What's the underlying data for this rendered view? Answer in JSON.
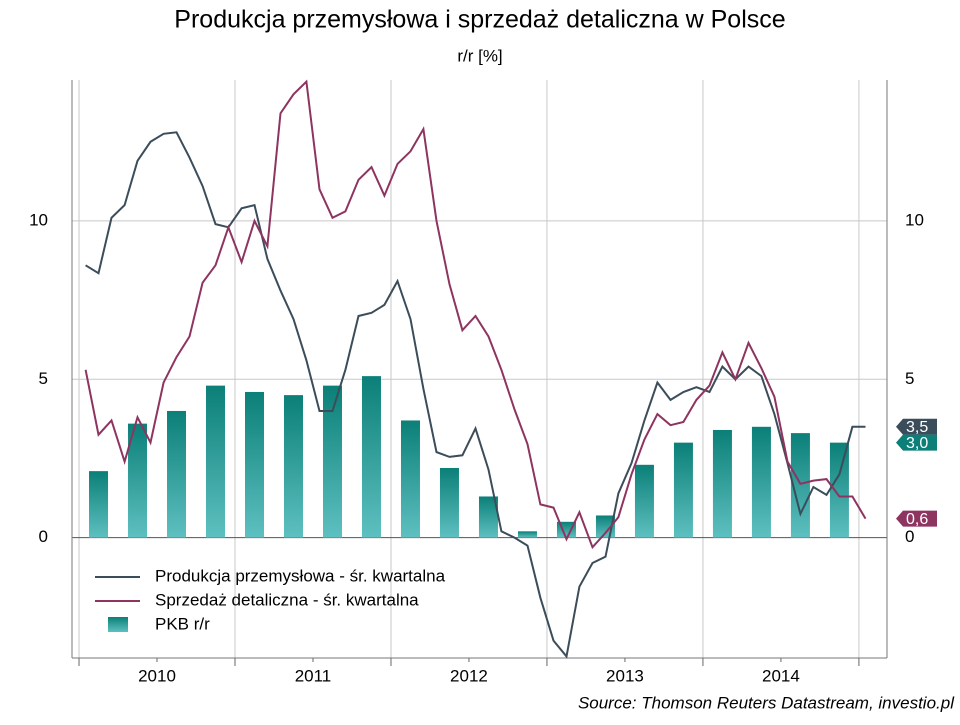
{
  "chart_data": {
    "type": "line",
    "title": "Produkcja przemysłowa i sprzedaż detaliczna w Polsce",
    "subtitle": "r/r [%]",
    "source": "Source: Thomson Reuters Datastream, investio.pl",
    "x": [
      2010.042,
      2010.125,
      2010.208,
      2010.292,
      2010.375,
      2010.458,
      2010.542,
      2010.625,
      2010.708,
      2010.792,
      2010.875,
      2010.958,
      2011.042,
      2011.125,
      2011.208,
      2011.292,
      2011.375,
      2011.458,
      2011.542,
      2011.625,
      2011.708,
      2011.792,
      2011.875,
      2011.958,
      2012.042,
      2012.125,
      2012.208,
      2012.292,
      2012.375,
      2012.458,
      2012.542,
      2012.625,
      2012.708,
      2012.792,
      2012.875,
      2012.958,
      2013.042,
      2013.125,
      2013.208,
      2013.292,
      2013.375,
      2013.458,
      2013.542,
      2013.625,
      2013.708,
      2013.792,
      2013.875,
      2013.958,
      2014.042,
      2014.125,
      2014.208,
      2014.292,
      2014.375,
      2014.458,
      2014.542,
      2014.625,
      2014.708,
      2014.792,
      2014.875,
      2014.958,
      2015.042
    ],
    "series": [
      {
        "name": "Produkcja przemysłowa - śr. kwartalna",
        "color": "#3b4d5a",
        "end_label": "3,5",
        "values": [
          8.6,
          8.35,
          10.1,
          10.5,
          11.9,
          12.5,
          12.75,
          12.8,
          12.0,
          11.1,
          9.9,
          9.8,
          10.4,
          10.5,
          8.8,
          7.8,
          6.9,
          5.6,
          4.0,
          4.0,
          5.3,
          7.0,
          7.1,
          7.35,
          8.1,
          6.9,
          4.7,
          2.7,
          2.55,
          2.6,
          3.45,
          2.15,
          0.2,
          0.0,
          -0.25,
          -1.9,
          -3.25,
          -3.75,
          -1.55,
          -0.8,
          -0.6,
          1.4,
          2.35,
          3.7,
          4.9,
          4.35,
          4.6,
          4.75,
          4.6,
          5.4,
          5.0,
          5.4,
          5.1,
          3.9,
          2.35,
          0.75,
          1.6,
          1.35,
          2.0,
          3.5,
          3.5
        ]
      },
      {
        "name": "Sprzedaż detaliczna - śr. kwartalna",
        "color": "#8e3460",
        "end_label": "0,6",
        "values": [
          5.3,
          3.25,
          3.7,
          2.4,
          3.8,
          3.0,
          4.9,
          5.7,
          6.35,
          8.05,
          8.6,
          9.8,
          8.7,
          10.0,
          9.2,
          13.4,
          14.0,
          14.4,
          11.0,
          10.1,
          10.3,
          11.3,
          11.7,
          10.8,
          11.8,
          12.2,
          12.9,
          10.0,
          8.0,
          6.55,
          7.0,
          6.35,
          5.3,
          4.05,
          2.95,
          1.05,
          0.95,
          -0.05,
          0.8,
          -0.3,
          0.15,
          0.65,
          2.0,
          3.1,
          3.9,
          3.55,
          3.65,
          4.35,
          4.8,
          5.85,
          5.0,
          6.15,
          5.35,
          4.45,
          2.4,
          1.7,
          1.8,
          1.85,
          1.3,
          1.3,
          0.6
        ]
      }
    ],
    "bars": {
      "name": "PKB r/r",
      "color_top": "#0b7f78",
      "color_bottom": "#5ec0c0",
      "end_label": "3,0",
      "x": [
        2010.125,
        2010.375,
        2010.625,
        2010.875,
        2011.125,
        2011.375,
        2011.625,
        2011.875,
        2012.125,
        2012.375,
        2012.625,
        2012.875,
        2013.125,
        2013.375,
        2013.625,
        2013.875,
        2014.125,
        2014.375,
        2014.625,
        2014.875
      ],
      "values": [
        2.1,
        3.6,
        4.0,
        4.8,
        4.6,
        4.5,
        4.8,
        5.1,
        3.7,
        2.2,
        1.3,
        0.2,
        0.5,
        0.7,
        2.3,
        3.0,
        3.4,
        3.5,
        3.3,
        3.0
      ]
    },
    "xlim": [
      2009.955,
      2015.18
    ],
    "xticks": [
      2010,
      2011,
      2012,
      2013,
      2014,
      2015
    ],
    "year_labels": [
      "2010",
      "2011",
      "2012",
      "2013",
      "2014"
    ],
    "ylim": [
      -3.8,
      14.45
    ],
    "yticks": [
      0,
      5,
      10
    ],
    "grid": true
  }
}
